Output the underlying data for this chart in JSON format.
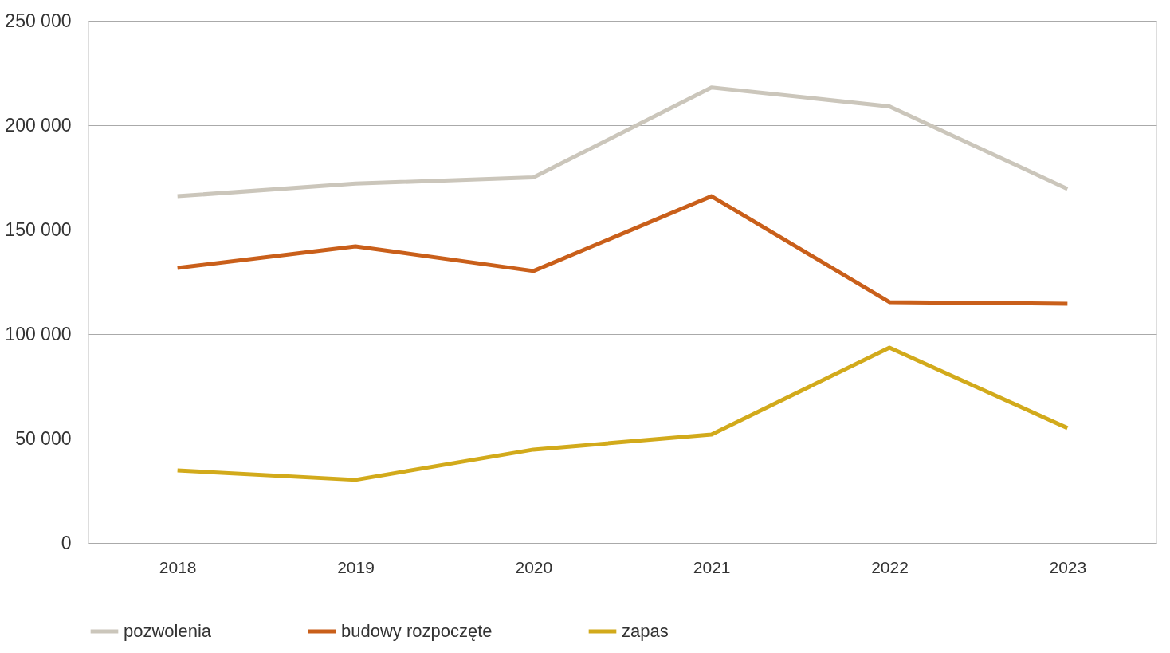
{
  "chart_data": {
    "type": "line",
    "categories": [
      "2018",
      "2019",
      "2020",
      "2021",
      "2022",
      "2023"
    ],
    "series": [
      {
        "name": "pozwolenia",
        "color": "#cbc6bb",
        "values": [
          166000,
          172000,
          175000,
          218000,
          209000,
          169500
        ]
      },
      {
        "name": "budowy rozpoczęte",
        "color": "#c95f1a",
        "values": [
          131700,
          142000,
          130200,
          166000,
          115300,
          114500
        ]
      },
      {
        "name": "zapas",
        "color": "#d2aa1b",
        "values": [
          34700,
          30200,
          44700,
          51900,
          93500,
          55000
        ]
      }
    ],
    "ylim": [
      0,
      250000
    ],
    "yticks": [
      0,
      {
        "value": 50000,
        "label": "50 000"
      },
      {
        "value": 100000,
        "label": "100 000"
      },
      {
        "value": 150000,
        "label": "150 000"
      },
      {
        "value": 200000,
        "label": "200 000"
      },
      {
        "value": 250000,
        "label": "250 000"
      }
    ],
    "grid": "y",
    "legend": "bottom"
  }
}
